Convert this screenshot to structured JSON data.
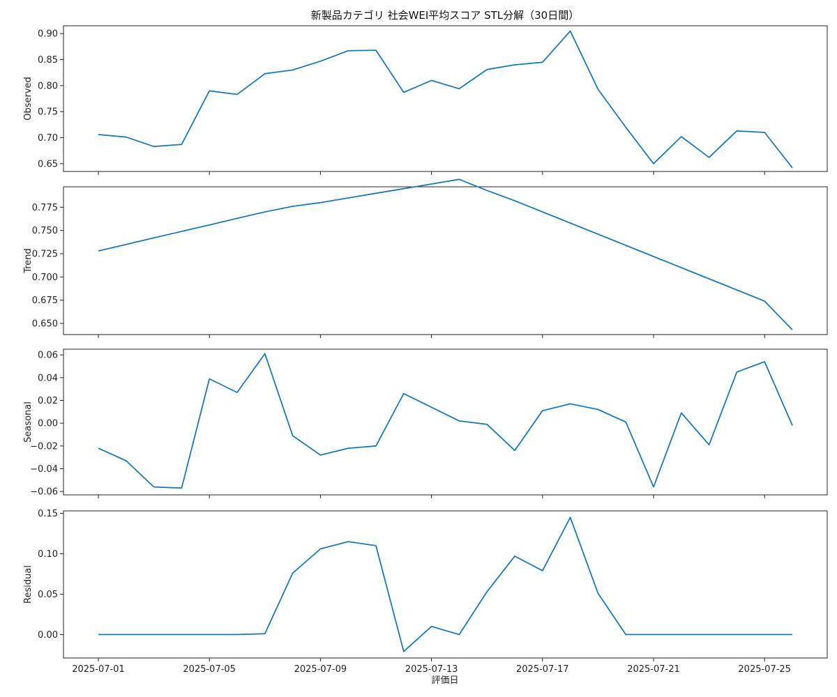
{
  "chart_data": {
    "type": "line",
    "title": "新製品カテゴリ 社会WEI平均スコア STL分解（30日間）",
    "xlabel": "評価日",
    "x": [
      "2025-07-01",
      "2025-07-02",
      "2025-07-03",
      "2025-07-04",
      "2025-07-05",
      "2025-07-06",
      "2025-07-07",
      "2025-07-08",
      "2025-07-09",
      "2025-07-10",
      "2025-07-11",
      "2025-07-12",
      "2025-07-13",
      "2025-07-14",
      "2025-07-15",
      "2025-07-16",
      "2025-07-17",
      "2025-07-18",
      "2025-07-19",
      "2025-07-20",
      "2025-07-21",
      "2025-07-22",
      "2025-07-23",
      "2025-07-24",
      "2025-07-25",
      "2025-07-26"
    ],
    "x_ticks": [
      "2025-07-01",
      "2025-07-05",
      "2025-07-09",
      "2025-07-13",
      "2025-07-17",
      "2025-07-21",
      "2025-07-25"
    ],
    "grid": false,
    "panels": [
      {
        "ylabel": "Observed",
        "ylim": [
          0.635,
          0.915
        ],
        "yticks": [
          "0.65",
          "0.70",
          "0.75",
          "0.80",
          "0.85",
          "0.90"
        ],
        "values": [
          0.706,
          0.701,
          0.683,
          0.687,
          0.79,
          0.783,
          0.823,
          0.83,
          0.847,
          0.867,
          0.868,
          0.787,
          0.81,
          0.794,
          0.831,
          0.84,
          0.845,
          0.905,
          0.793,
          0.72,
          0.65,
          0.702,
          0.662,
          0.713,
          0.71,
          0.642
        ]
      },
      {
        "ylabel": "Trend",
        "ylim": [
          0.638,
          0.797
        ],
        "yticks": [
          "0.650",
          "0.675",
          "0.700",
          "0.725",
          "0.750",
          "0.775"
        ],
        "values": [
          0.728,
          0.735,
          0.742,
          0.749,
          0.756,
          0.763,
          0.77,
          0.776,
          0.78,
          0.785,
          0.79,
          0.795,
          0.8,
          0.805,
          0.793,
          0.782,
          0.77,
          0.758,
          0.746,
          0.734,
          0.722,
          0.71,
          0.698,
          0.686,
          0.674,
          0.643
        ]
      },
      {
        "ylabel": "Seasonal",
        "ylim": [
          -0.063,
          0.065
        ],
        "yticks": [
          "−0.06",
          "−0.04",
          "−0.02",
          "0.00",
          "0.02",
          "0.04",
          "0.06"
        ],
        "values": [
          -0.022,
          -0.033,
          -0.056,
          -0.057,
          0.039,
          0.027,
          0.061,
          -0.011,
          -0.028,
          -0.022,
          -0.02,
          0.026,
          0.014,
          0.002,
          -0.001,
          -0.024,
          0.011,
          0.017,
          0.012,
          0.001,
          -0.056,
          0.009,
          -0.019,
          0.045,
          0.054,
          -0.002
        ]
      },
      {
        "ylabel": "Residual",
        "ylim": [
          -0.029,
          0.153
        ],
        "yticks": [
          "0.00",
          "0.05",
          "0.10",
          "0.15"
        ],
        "values": [
          0.0,
          0.0,
          0.0,
          0.0,
          0.0,
          0.0,
          0.001,
          0.076,
          0.106,
          0.115,
          0.11,
          -0.021,
          0.01,
          0.0,
          0.053,
          0.097,
          0.079,
          0.145,
          0.051,
          0.0,
          0.0,
          0.0,
          0.0,
          0.0,
          0.0,
          0.0
        ]
      }
    ]
  }
}
